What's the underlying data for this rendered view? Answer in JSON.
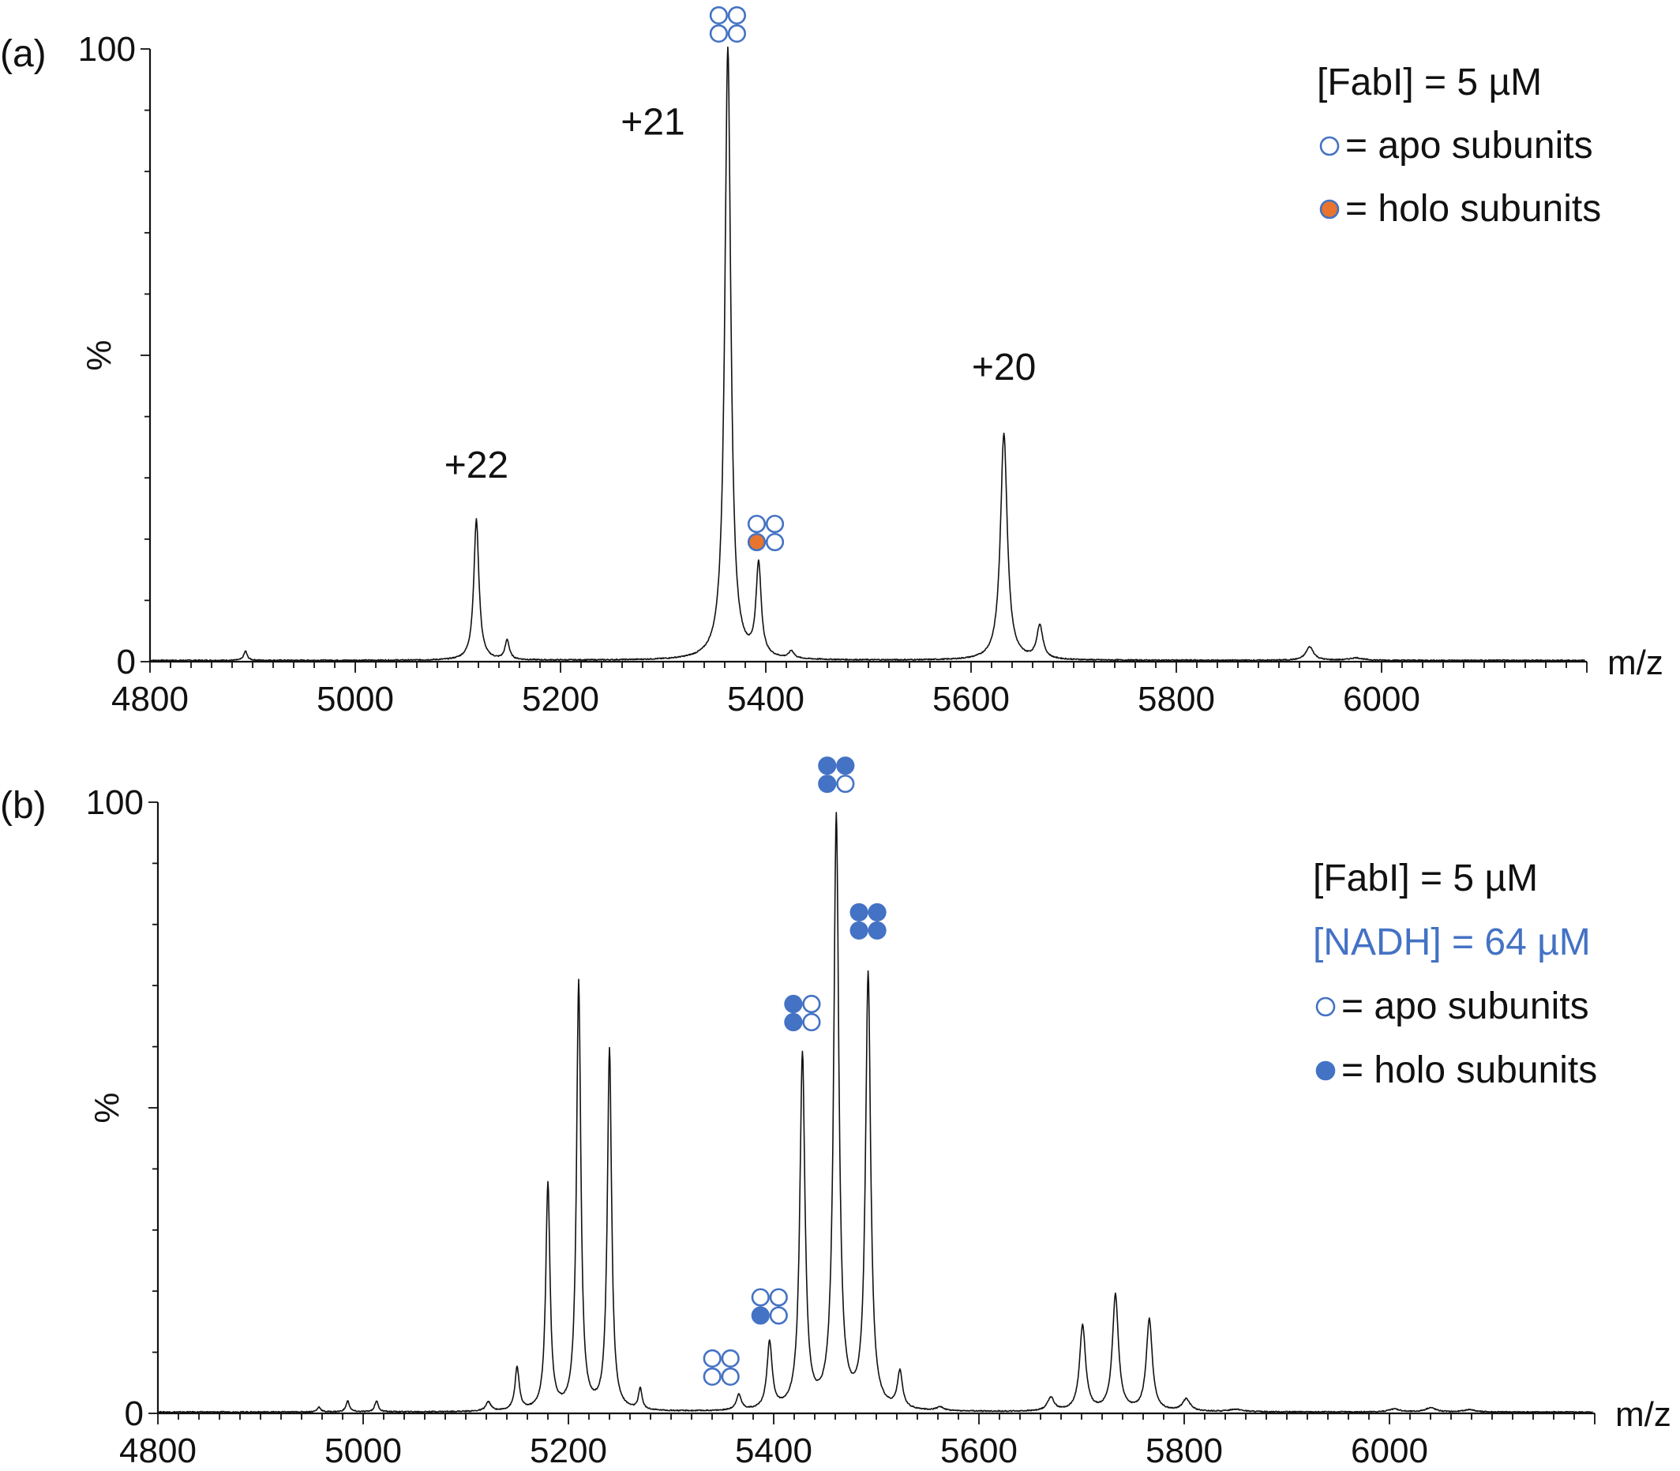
{
  "chart_data": [
    {
      "type": "line",
      "panel_label": "(a)",
      "ylabel": "%",
      "xlabel": "m/z",
      "xlim": [
        4800,
        6200
      ],
      "ylim": [
        0,
        100
      ],
      "x_ticks": [
        "4800",
        "5000",
        "5200",
        "5400",
        "5600",
        "5800",
        "6000"
      ],
      "y_ticks": [
        "100",
        "0"
      ],
      "peaks": [
        {
          "mz": 4893,
          "height": 1.5,
          "width": 4
        },
        {
          "mz": 5118,
          "height": 23,
          "width": 6
        },
        {
          "mz": 5148,
          "height": 3.2,
          "width": 5
        },
        {
          "mz": 5363,
          "height": 100,
          "width": 7
        },
        {
          "mz": 5393,
          "height": 15,
          "width": 6
        },
        {
          "mz": 5425,
          "height": 1.2,
          "width": 6
        },
        {
          "mz": 5632,
          "height": 37,
          "width": 8
        },
        {
          "mz": 5667,
          "height": 5.5,
          "width": 7
        },
        {
          "mz": 5930,
          "height": 2.2,
          "width": 9
        },
        {
          "mz": 5975,
          "height": 0.4,
          "width": 15
        }
      ],
      "charge_labels": [
        {
          "text": "+22",
          "mz": 5118,
          "pct": 30
        },
        {
          "text": "+21",
          "mz": 5290,
          "pct": 86
        },
        {
          "text": "+20",
          "mz": 5632,
          "pct": 46
        }
      ],
      "glyphs": [
        {
          "mz": 5363,
          "pct": 104,
          "subunits": [
            "apo",
            "apo",
            "apo",
            "apo"
          ]
        },
        {
          "mz": 5400,
          "pct": 21,
          "subunits": [
            "apo",
            "apo",
            "holo",
            "apo"
          ]
        }
      ],
      "legend": [
        {
          "kind": "text",
          "text": "[FabI] = 5 µM",
          "color": "#111111"
        },
        {
          "kind": "marker",
          "marker": "apo",
          "text": "= apo subunits",
          "color": "#111111"
        },
        {
          "kind": "marker",
          "marker": "holo",
          "text": "= holo subunits",
          "color": "#111111"
        }
      ],
      "legend_placement": "top-right",
      "holo_color": "#E8742E",
      "outline_color": "#4472C4"
    },
    {
      "type": "line",
      "panel_label": "(b)",
      "ylabel": "%",
      "xlabel": "m/z",
      "xlim": [
        4800,
        6200
      ],
      "ylim": [
        0,
        100
      ],
      "x_ticks": [
        "4800",
        "5000",
        "5200",
        "5400",
        "5600",
        "5800",
        "6000"
      ],
      "y_ticks": [
        "100",
        "0"
      ],
      "peaks": [
        {
          "mz": 4957,
          "height": 0.8,
          "width": 4
        },
        {
          "mz": 4985,
          "height": 1.8,
          "width": 4
        },
        {
          "mz": 5013,
          "height": 1.8,
          "width": 4
        },
        {
          "mz": 5122,
          "height": 1.5,
          "width": 6
        },
        {
          "mz": 5150,
          "height": 7,
          "width": 5
        },
        {
          "mz": 5180,
          "height": 37,
          "width": 5
        },
        {
          "mz": 5210,
          "height": 70,
          "width": 5
        },
        {
          "mz": 5240,
          "height": 59,
          "width": 5
        },
        {
          "mz": 5270,
          "height": 3.5,
          "width": 4
        },
        {
          "mz": 5366,
          "height": 2.5,
          "width": 6
        },
        {
          "mz": 5396,
          "height": 11,
          "width": 6
        },
        {
          "mz": 5428,
          "height": 58,
          "width": 6
        },
        {
          "mz": 5461,
          "height": 97,
          "width": 6
        },
        {
          "mz": 5492,
          "height": 71,
          "width": 6
        },
        {
          "mz": 5523,
          "height": 6,
          "width": 6
        },
        {
          "mz": 5562,
          "height": 0.6,
          "width": 8
        },
        {
          "mz": 5670,
          "height": 2.2,
          "width": 8
        },
        {
          "mz": 5701,
          "height": 14,
          "width": 7
        },
        {
          "mz": 5733,
          "height": 19,
          "width": 7
        },
        {
          "mz": 5766,
          "height": 15,
          "width": 7
        },
        {
          "mz": 5802,
          "height": 2,
          "width": 9
        },
        {
          "mz": 5850,
          "height": 0.4,
          "width": 15
        },
        {
          "mz": 6005,
          "height": 0.5,
          "width": 12
        },
        {
          "mz": 6040,
          "height": 0.7,
          "width": 12
        },
        {
          "mz": 6078,
          "height": 0.4,
          "width": 12
        }
      ],
      "charge_labels": [],
      "glyphs": [
        {
          "mz": 5349,
          "pct": 7.5,
          "subunits": [
            "apo",
            "apo",
            "apo",
            "apo"
          ]
        },
        {
          "mz": 5396,
          "pct": 17.5,
          "subunits": [
            "apo",
            "apo",
            "holo",
            "apo"
          ]
        },
        {
          "mz": 5428,
          "pct": 65.5,
          "subunits": [
            "holo",
            "apo",
            "holo",
            "apo"
          ]
        },
        {
          "mz": 5461,
          "pct": 104.5,
          "subunits": [
            "holo",
            "holo",
            "holo",
            "apo"
          ]
        },
        {
          "mz": 5492,
          "pct": 80.5,
          "subunits": [
            "holo",
            "holo",
            "holo",
            "holo"
          ]
        }
      ],
      "legend": [
        {
          "kind": "text",
          "text": "[FabI] = 5 µM",
          "color": "#111111"
        },
        {
          "kind": "text",
          "text": "[NADH] = 64 µM",
          "color": "#4472C4"
        },
        {
          "kind": "marker",
          "marker": "apo",
          "text": "= apo subunits",
          "color": "#111111"
        },
        {
          "kind": "marker",
          "marker": "holo",
          "text": "= holo subunits",
          "color": "#111111"
        }
      ],
      "legend_placement": "right",
      "holo_color": "#4472C4",
      "outline_color": "#4472C4"
    }
  ]
}
